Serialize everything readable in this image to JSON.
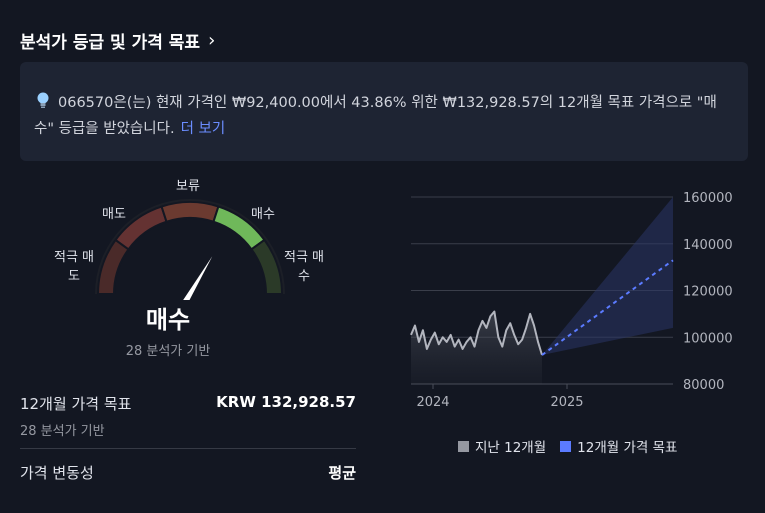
{
  "header": {
    "title": "분석가 등급 및 가격 목표",
    "chevron": "›"
  },
  "info": {
    "icon": "lightbulb-icon",
    "text": "066570은(는) 현재 가격인 ₩92,400.00에서 43.86% 위한 ₩132,928.57의 12개월 목표 가격으로 \"매수\" 등급을 받았습니다.",
    "more": "더 보기"
  },
  "gauge": {
    "segments": [
      {
        "label": "적극 매도",
        "color": "#4a2a29"
      },
      {
        "label": "매도",
        "color": "#643232"
      },
      {
        "label": "보류",
        "color": "#6b3a30"
      },
      {
        "label": "매수",
        "color": "#6fb85a"
      },
      {
        "label": "적극 매수",
        "color": "#2b3a28"
      }
    ],
    "label_strong_sell": [
      "적극 매",
      "도"
    ],
    "label_sell": "매도",
    "label_hold": "보류",
    "label_buy": "매수",
    "label_strong_buy": [
      "적극 매",
      "수"
    ],
    "active_index": 3,
    "needle_fraction": 0.67,
    "rating": "매수",
    "basis": "28 분석가 기반"
  },
  "target": {
    "label": "12개월 가격 목표",
    "value": "KRW 132,928.57",
    "basis": "28 분석가 기반"
  },
  "volatility": {
    "label": "가격 변동성",
    "value": "평균"
  },
  "colors": {
    "history": "#b2b5be",
    "target": "#5b7bff",
    "grid": "#3a3e4a",
    "band": "#2a3566"
  },
  "chart_data": {
    "type": "line",
    "y_ticks": [
      "160000",
      "140000",
      "120000",
      "100000",
      "80000"
    ],
    "y_tick_values": [
      160000,
      140000,
      120000,
      100000,
      80000
    ],
    "x_ticks": [
      "2024",
      "2025"
    ],
    "ylim": [
      80000,
      160000
    ],
    "series": [
      {
        "name": "지난 12개월",
        "values": [
          101000,
          105000,
          98000,
          103000,
          95000,
          99000,
          102000,
          97000,
          100000,
          98000,
          101000,
          96000,
          99000,
          95000,
          98000,
          100000,
          96000,
          103000,
          107000,
          104000,
          109000,
          111000,
          100000,
          96000,
          103000,
          106000,
          101000,
          97000,
          99000,
          104000,
          110000,
          105000,
          98000,
          92400
        ]
      },
      {
        "name": "12개월 가격 목표",
        "start": 92400,
        "end": 132928.57,
        "band_high": 160000,
        "band_low": 104000
      }
    ]
  }
}
